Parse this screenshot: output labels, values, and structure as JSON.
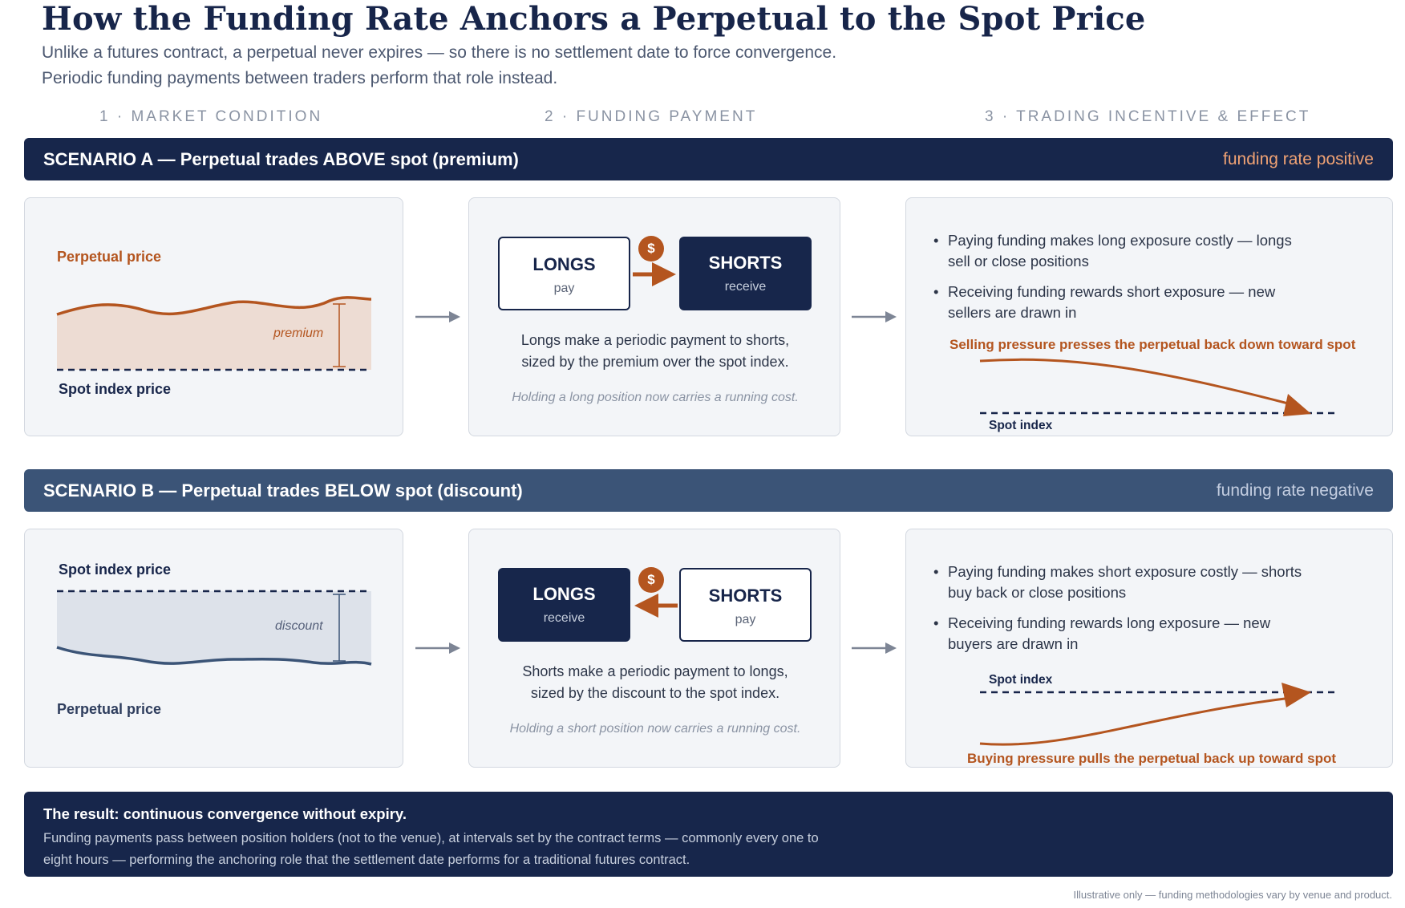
{
  "title": "How the Funding Rate Anchors a Perpetual to the Spot Price",
  "subtitle_lines": [
    "Unlike a futures contract, a perpetual never expires — so there is no settlement date to force convergence.",
    "Periodic funding payments between traders perform that role instead."
  ],
  "steps": [
    "1 · MARKET CONDITION",
    "2 · FUNDING PAYMENT",
    "3 · TRADING INCENTIVE & EFFECT"
  ],
  "colors": {
    "navy": "#17264b",
    "slate": "#3b5477",
    "accent": "#b4551f",
    "panel": "#f3f5f8"
  },
  "scenario_a": {
    "title": "SCENARIO A — Perpetual trades ABOVE spot (premium)",
    "rate": "funding rate positive",
    "perp_label": "Perpetual price",
    "spot_label": "Spot index price",
    "gap_label": "premium",
    "payer": {
      "name": "LONGS",
      "role": "pay"
    },
    "receiver": {
      "name": "SHORTS",
      "role": "receive"
    },
    "coin": "$",
    "desc_lines": [
      "Longs make a periodic payment to shorts,",
      "sized by the premium over the spot index."
    ],
    "note": "Holding a long position now carries a running cost.",
    "bullets": [
      [
        "Paying funding makes long exposure costly — longs",
        "sell or close positions"
      ],
      [
        "Receiving funding rewards short exposure — new",
        "sellers are drawn in"
      ]
    ],
    "effect": "Selling pressure presses the perpetual back down toward spot",
    "spot_index": "Spot index"
  },
  "scenario_b": {
    "title": "SCENARIO B — Perpetual trades BELOW spot (discount)",
    "rate": "funding rate negative",
    "perp_label": "Perpetual price",
    "spot_label": "Spot index price",
    "gap_label": "discount",
    "receiver": {
      "name": "LONGS",
      "role": "receive"
    },
    "payer": {
      "name": "SHORTS",
      "role": "pay"
    },
    "coin": "$",
    "desc_lines": [
      "Shorts make a periodic payment to longs,",
      "sized by the discount to the spot index."
    ],
    "note": "Holding a short position now carries a running cost.",
    "bullets": [
      [
        "Paying funding makes short exposure costly — shorts",
        "buy back or close positions"
      ],
      [
        "Receiving funding rewards long exposure — new",
        "buyers are drawn in"
      ]
    ],
    "effect": "Buying pressure pulls the perpetual back up toward spot",
    "spot_index": "Spot index"
  },
  "result": {
    "title": "The result: continuous convergence without expiry.",
    "body_lines": [
      "Funding payments pass between position holders (not to the venue), at intervals set by the contract terms — commonly every one to",
      "eight hours — performing the anchoring role that the settlement date performs for a traditional futures contract."
    ]
  },
  "footnote": "Illustrative only — funding methodologies vary by venue and product."
}
